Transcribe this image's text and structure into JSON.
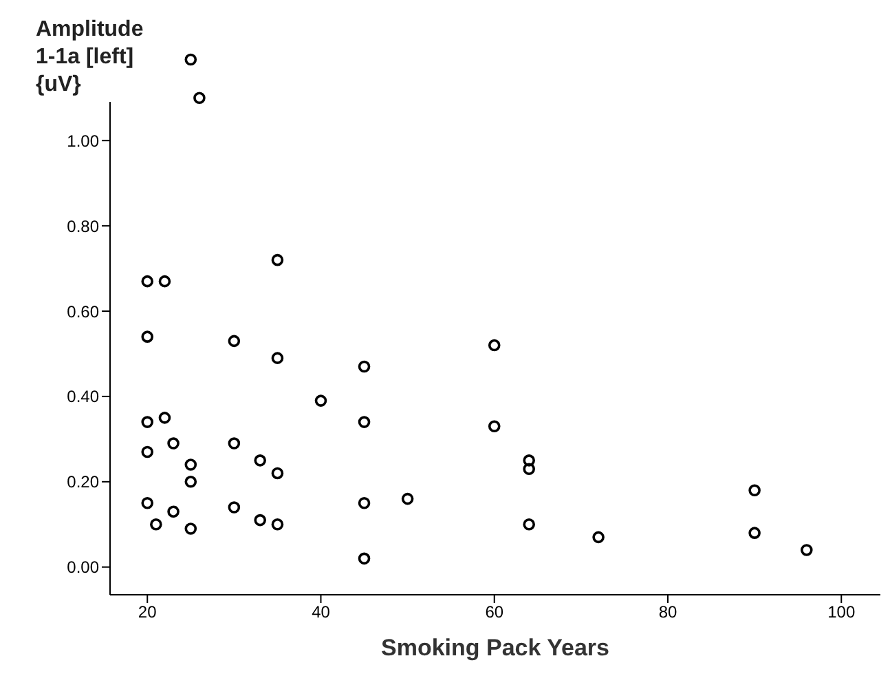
{
  "chart_data": {
    "type": "scatter",
    "xlabel": "Smoking Pack Years",
    "ylabel": "Amplitude 1-1a [left] {uV}",
    "marker": "circle",
    "grid": false,
    "legend": false,
    "x": [
      20,
      22,
      20,
      20,
      22,
      20,
      23,
      25,
      25,
      20,
      21,
      23,
      25,
      25,
      26,
      30,
      30,
      30,
      33,
      33,
      35,
      35,
      35,
      35,
      40,
      45,
      45,
      45,
      45,
      50,
      60,
      60,
      64,
      64,
      64,
      72,
      90,
      90,
      96
    ],
    "values": [
      0.67,
      0.67,
      0.54,
      0.34,
      0.35,
      0.27,
      0.29,
      0.24,
      0.2,
      0.15,
      0.1,
      0.13,
      0.09,
      1.19,
      1.1,
      0.53,
      0.29,
      0.14,
      0.25,
      0.11,
      0.72,
      0.49,
      0.22,
      0.1,
      0.39,
      0.47,
      0.34,
      0.15,
      0.02,
      0.16,
      0.52,
      0.33,
      0.25,
      0.23,
      0.1,
      0.07,
      0.18,
      0.08,
      0.04
    ],
    "color": "#000000",
    "xlim": [
      15.7,
      104.5
    ],
    "xticks": [
      20,
      40,
      60,
      80,
      100
    ],
    "ylim": [
      -0.065,
      1.265
    ],
    "yticks": [
      {
        "value": 0,
        "label": "0.00"
      },
      {
        "value": 0.2,
        "label": "0.20"
      },
      {
        "value": 0.4,
        "label": "0.40"
      },
      {
        "value": 0.6,
        "label": "0.60"
      },
      {
        "value": 0.8,
        "label": "0.80"
      },
      {
        "value": 1,
        "label": "1.00"
      }
    ]
  }
}
